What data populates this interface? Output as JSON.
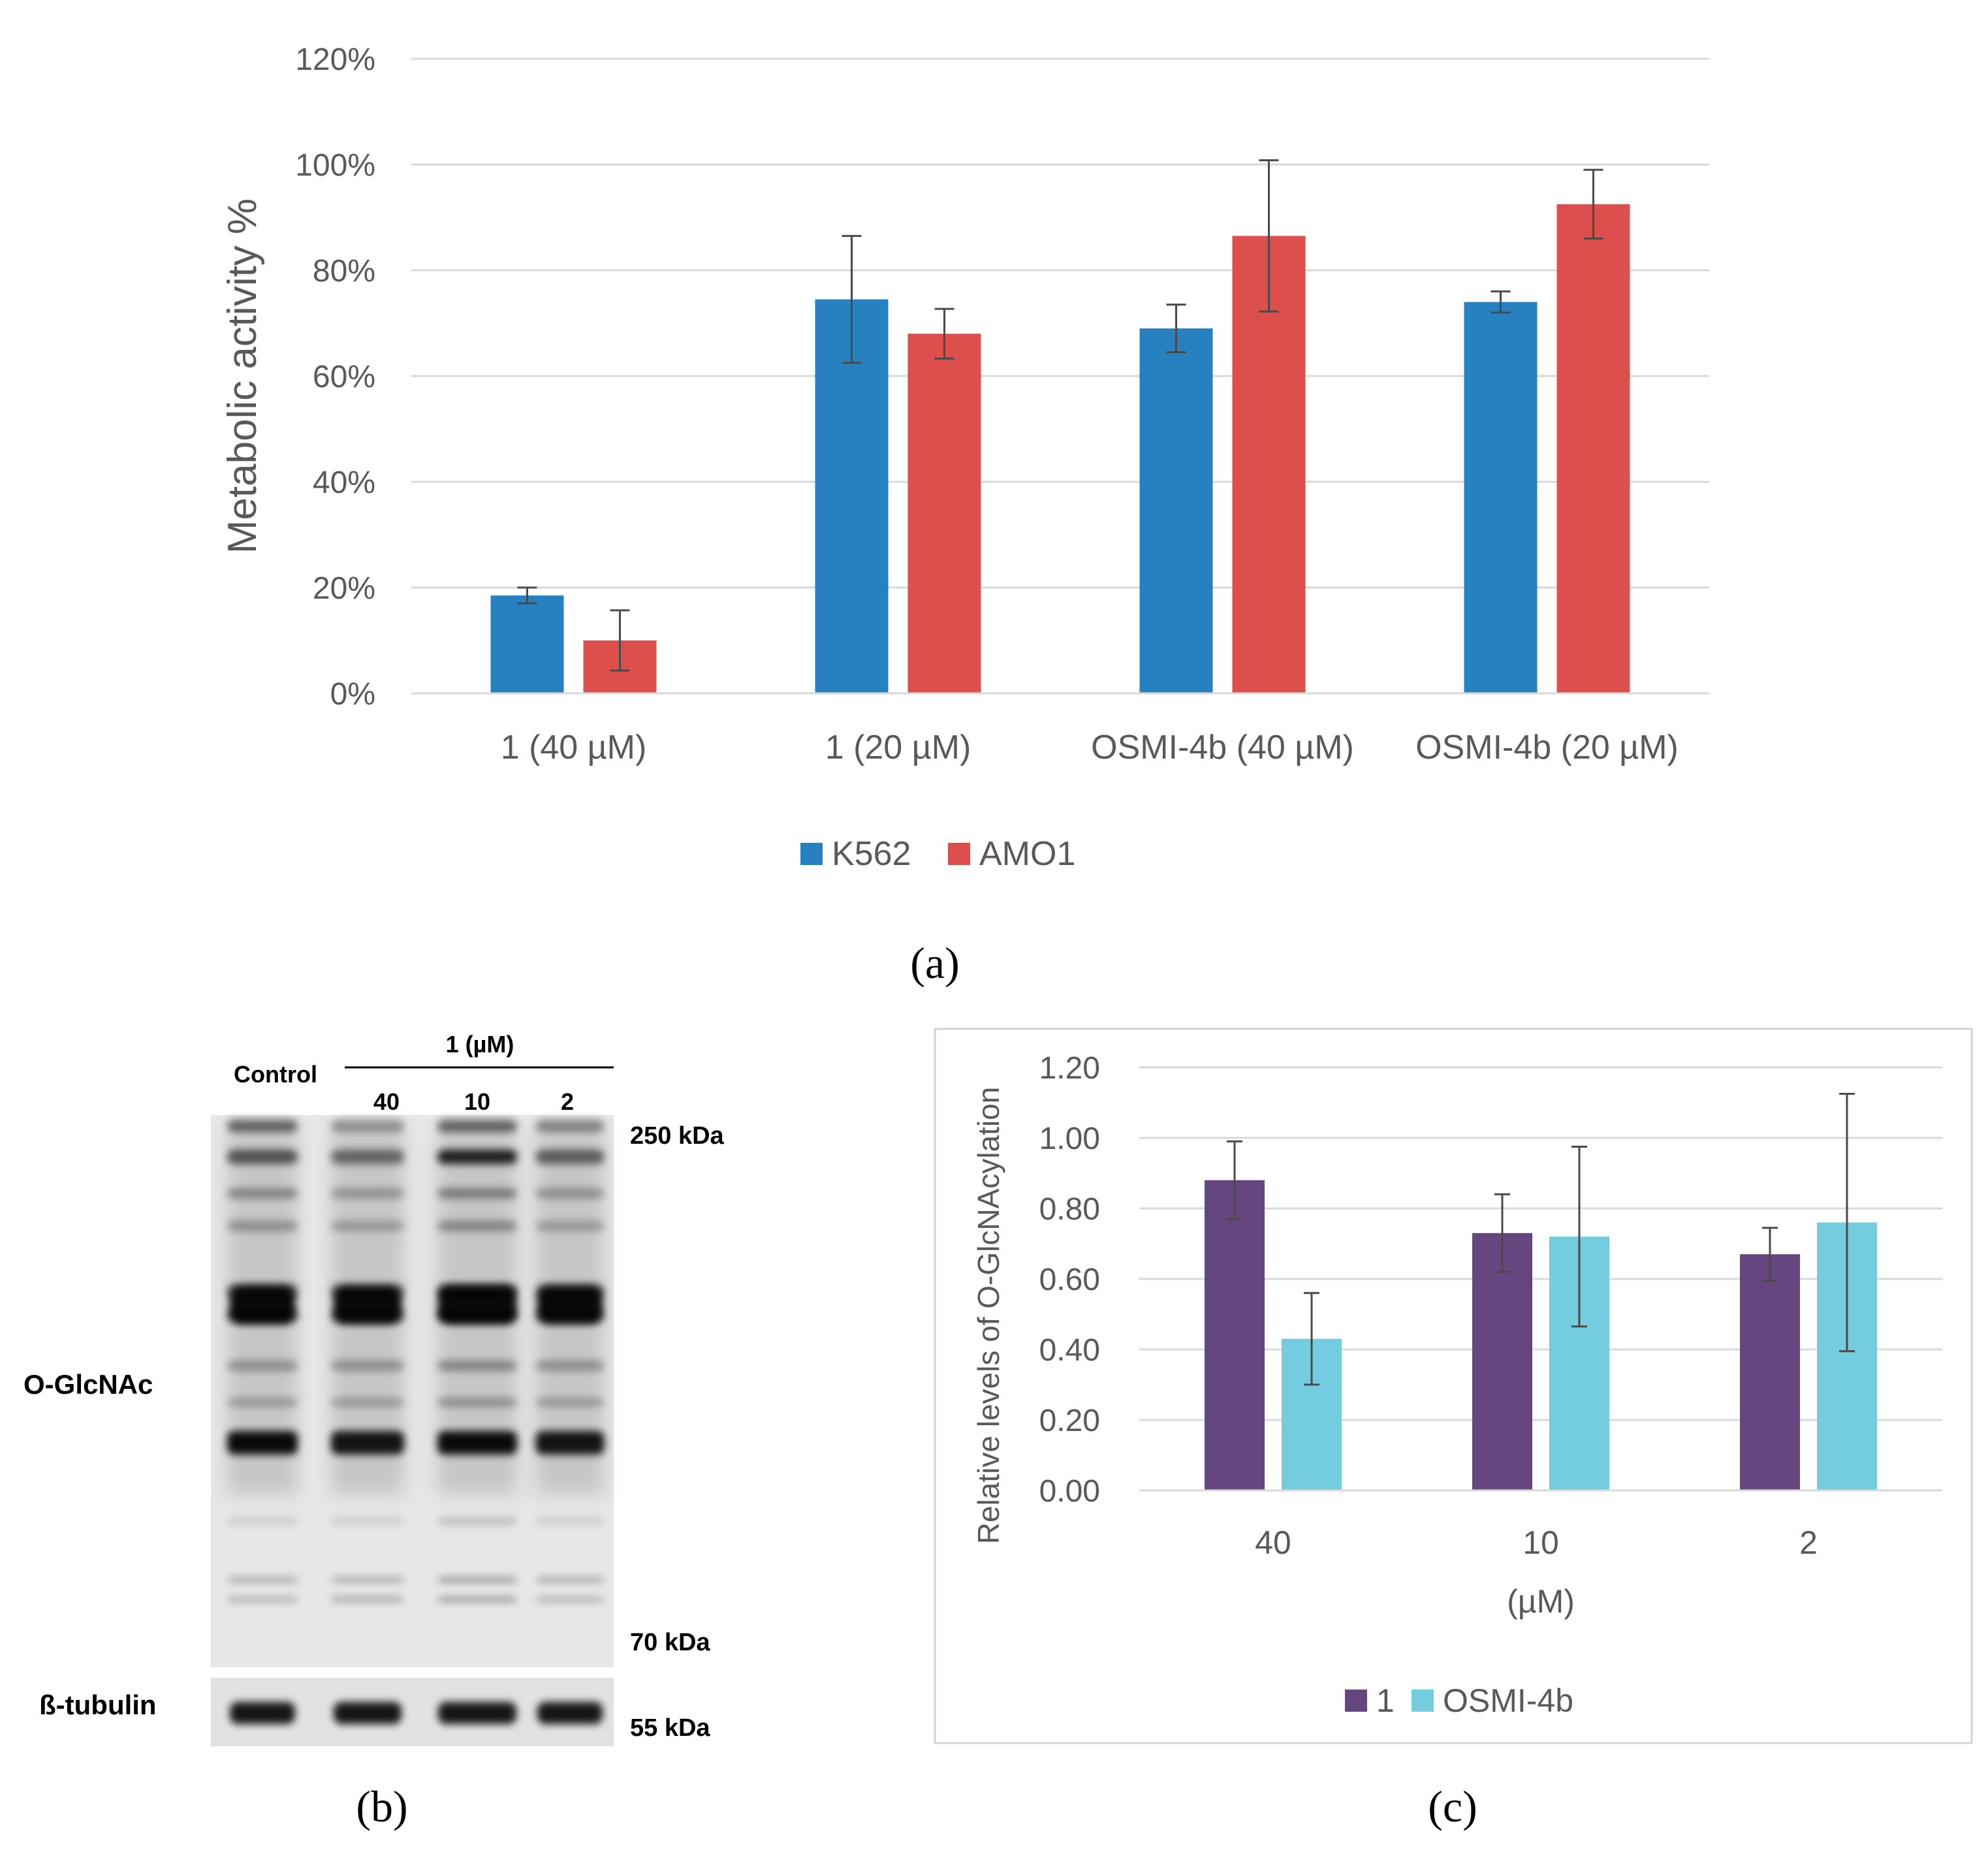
{
  "panel_labels": {
    "a": "(a)",
    "b": "(b)",
    "c": "(c)"
  },
  "blot": {
    "control_label": "Control",
    "treatment_label": "1 (µM)",
    "lanes": [
      "40",
      "10",
      "2"
    ],
    "markers": [
      "250 kDa",
      "70 kDa",
      "55 kDa"
    ],
    "row_labels": [
      "O-GlcNAc",
      "ß-tubulin"
    ]
  },
  "chart_data": [
    {
      "type": "bar",
      "ylabel": "Metabolic activity %",
      "xlabel": "",
      "categories": [
        "1 (40 µM)",
        "1 (20 µM)",
        "OSMI-4b (40 µM)",
        "OSMI-4b (20 µM)"
      ],
      "series": [
        {
          "name": "K562",
          "color": "#2781c1",
          "values": [
            18.5,
            74.5,
            69,
            74
          ],
          "errors": [
            1.5,
            12,
            4.5,
            2
          ]
        },
        {
          "name": "AMO1",
          "color": "#dc4f4d",
          "values": [
            10,
            68,
            86.5,
            92.5
          ],
          "errors": [
            5.7,
            4.7,
            14.3,
            6.5
          ]
        }
      ],
      "ylim": [
        0,
        120
      ],
      "yticks": [
        "0%",
        "20%",
        "40%",
        "60%",
        "80%",
        "100%",
        "120%"
      ],
      "grid": true,
      "legend": "bottom"
    },
    {
      "type": "bar",
      "ylabel": "Relative levels of O-GlcNAcylation",
      "xlabel": "(µM)",
      "categories": [
        "40",
        "10",
        "2"
      ],
      "series": [
        {
          "name": "1",
          "color": "#65467e",
          "values": [
            0.88,
            0.73,
            0.67
          ],
          "errors": [
            0.11,
            0.11,
            0.075
          ]
        },
        {
          "name": "OSMI-4b",
          "color": "#73cddf",
          "values": [
            0.43,
            0.72,
            0.76
          ],
          "errors": [
            0.13,
            0.255,
            0.365
          ]
        }
      ],
      "ylim": [
        0,
        1.2
      ],
      "yticks": [
        "0.00",
        "0.20",
        "0.40",
        "0.60",
        "0.80",
        "1.00",
        "1.20"
      ],
      "grid": true,
      "legend": "bottom"
    }
  ]
}
